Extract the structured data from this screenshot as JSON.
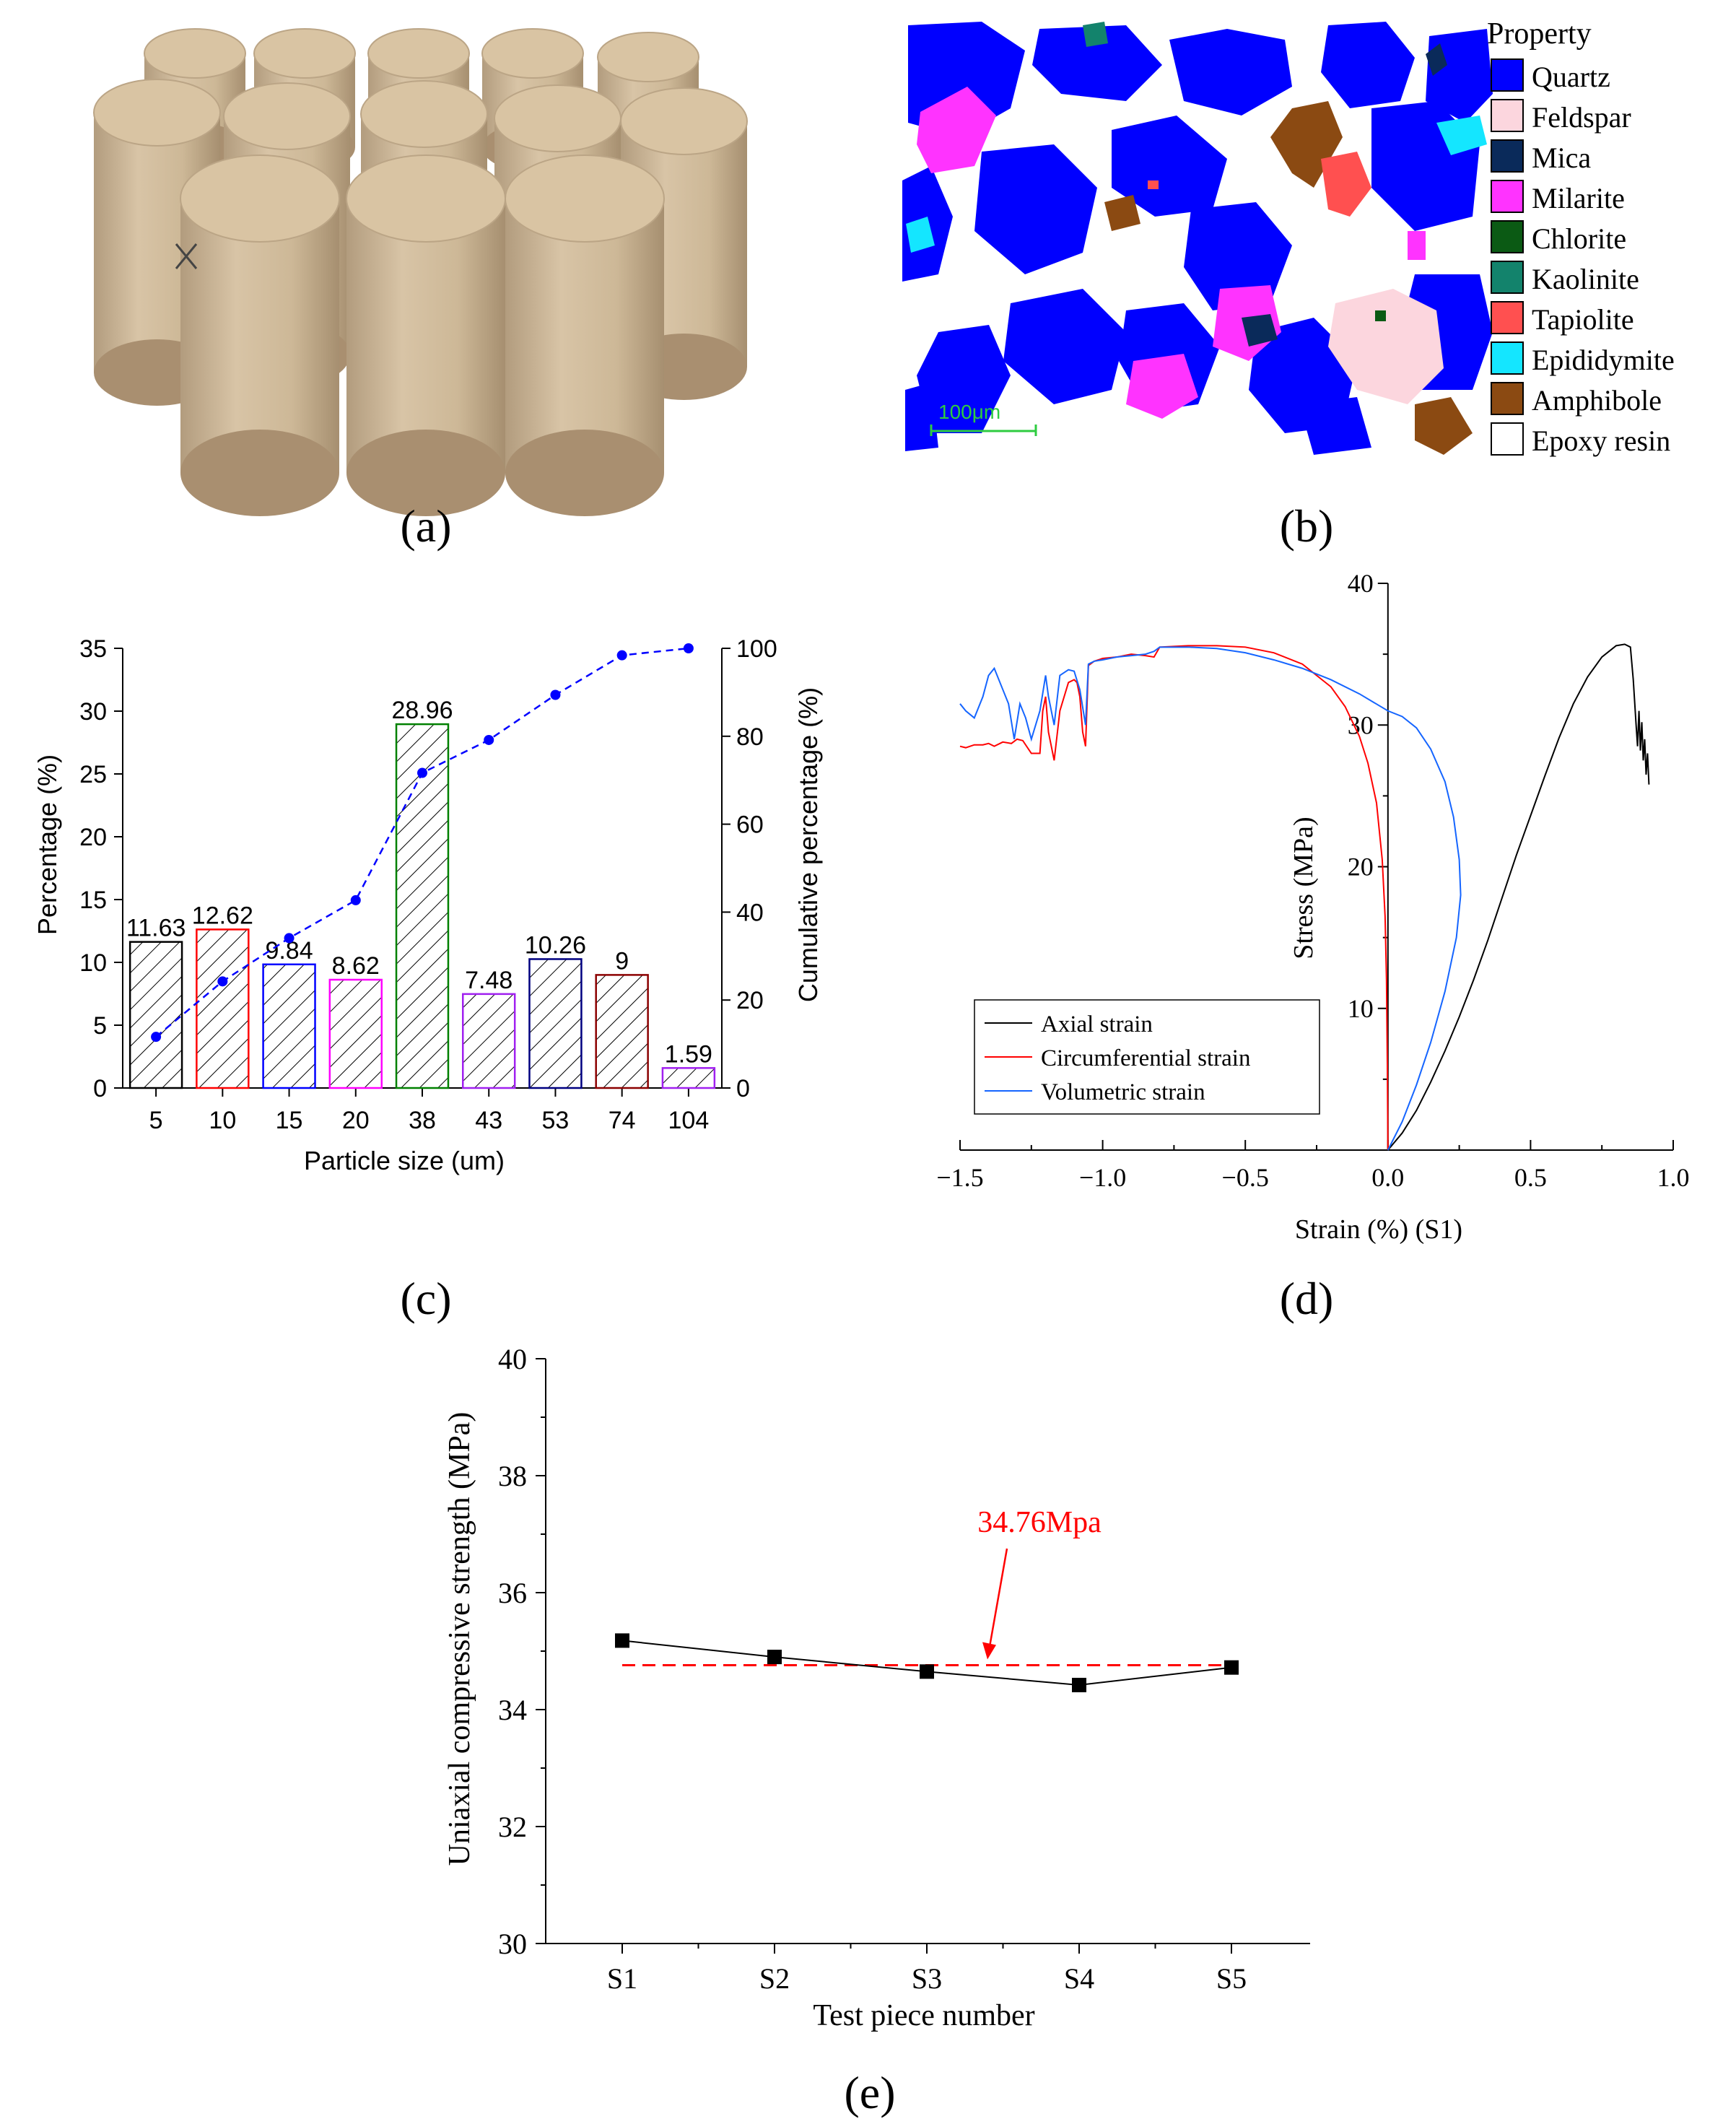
{
  "panel_labels": [
    "(a)",
    "(b)",
    "(c)",
    "(d)",
    "(e)"
  ],
  "panel_b": {
    "legend_title": "Property",
    "scale_label": "100μm",
    "legend": [
      {
        "name": "Quartz",
        "color": "#0000ff"
      },
      {
        "name": "Feldspar",
        "color": "#fcd6de"
      },
      {
        "name": "Mica",
        "color": "#0a2a5a"
      },
      {
        "name": "Milarite",
        "color": "#ff33ff"
      },
      {
        "name": "Chlorite",
        "color": "#0b5a14"
      },
      {
        "name": "Kaolinite",
        "color": "#13836c"
      },
      {
        "name": "Tapiolite",
        "color": "#ff5050"
      },
      {
        "name": "Epididymite",
        "color": "#14e6ff"
      },
      {
        "name": "Amphibole",
        "color": "#8b4a12"
      },
      {
        "name": "Epoxy resin",
        "color": "#ffffff"
      }
    ]
  },
  "chart_data": [
    {
      "id": "c",
      "type": "bar",
      "categories": [
        "5",
        "10",
        "15",
        "20",
        "38",
        "43",
        "53",
        "74",
        "104"
      ],
      "series": [
        {
          "name": "Percentage",
          "values": [
            11.63,
            12.62,
            9.84,
            8.62,
            28.96,
            7.48,
            10.26,
            9,
            1.59
          ],
          "labels": [
            "11.63",
            "12.62",
            "9.84",
            "8.62",
            "28.96",
            "7.48",
            "10.26",
            "9",
            "1.59"
          ],
          "colors": [
            "#000000",
            "#ff0000",
            "#0000ff",
            "#ff00ff",
            "#008000",
            "#a020f0",
            "#000080",
            "#8b0000",
            "#a020f0"
          ]
        },
        {
          "name": "Cumulative percentage",
          "type": "line",
          "axis": "right",
          "values": [
            11.63,
            24.25,
            34.09,
            42.71,
            71.67,
            79.15,
            89.41,
            98.41,
            100
          ],
          "color": "#0000ff"
        }
      ],
      "xlabel": "Particle size (um)",
      "ylabel": "Percentage (%)",
      "y2label": "Cumulative percentage (%)",
      "ylim": [
        0,
        35
      ],
      "y2lim": [
        0,
        100
      ],
      "yticks": [
        "0",
        "5",
        "10",
        "15",
        "20",
        "25",
        "30",
        "35"
      ],
      "y2ticks": [
        "0",
        "20",
        "40",
        "60",
        "80",
        "100"
      ]
    },
    {
      "id": "d",
      "type": "line",
      "xlabel": "Strain (%) (S1)",
      "ylabel": "Stress (MPa)",
      "xlim": [
        -1.5,
        1.0
      ],
      "ylim": [
        0,
        40
      ],
      "xticks": [
        "−1.5",
        "−1.0",
        "−0.5",
        "0.0",
        "0.5",
        "1.0"
      ],
      "yticks": [
        "10",
        "20",
        "30",
        "40"
      ],
      "legend": [
        "Axial strain",
        "Circumferential strain",
        "Volumetric strain"
      ],
      "series": [
        {
          "name": "Axial strain",
          "color": "#000000",
          "x": [
            0,
            0.05,
            0.1,
            0.15,
            0.2,
            0.25,
            0.3,
            0.35,
            0.4,
            0.45,
            0.5,
            0.55,
            0.6,
            0.65,
            0.7,
            0.75,
            0.8,
            0.83,
            0.85,
            0.86,
            0.87,
            0.875,
            0.88,
            0.885,
            0.89,
            0.895,
            0.9,
            0.905,
            0.91,
            0.915
          ],
          "y": [
            0,
            1.2,
            2.8,
            4.8,
            7.0,
            9.4,
            12.0,
            14.8,
            17.8,
            20.8,
            23.6,
            26.4,
            29.1,
            31.5,
            33.4,
            34.8,
            35.6,
            35.7,
            35.5,
            33.2,
            30.0,
            28.5,
            31.0,
            28.2,
            30.2,
            27.5,
            29.0,
            26.5,
            28.0,
            25.8
          ]
        },
        {
          "name": "Circumferential strain",
          "color": "#ff0000",
          "x": [
            0,
            -0.002,
            -0.005,
            -0.01,
            -0.02,
            -0.04,
            -0.07,
            -0.1,
            -0.15,
            -0.2,
            -0.3,
            -0.4,
            -0.5,
            -0.6,
            -0.7,
            -0.8,
            -0.82,
            -0.85,
            -0.9,
            -0.95,
            -1.0,
            -1.03,
            -1.05,
            -1.06,
            -1.07,
            -1.08,
            -1.09,
            -1.1,
            -1.12,
            -1.15,
            -1.17,
            -1.19,
            -1.2,
            -1.21,
            -1.22,
            -1.25,
            -1.28,
            -1.3,
            -1.32,
            -1.35,
            -1.38,
            -1.4,
            -1.42,
            -1.45,
            -1.48,
            -1.5
          ],
          "y": [
            0,
            6,
            12,
            16.5,
            20.5,
            24.5,
            27.3,
            29.2,
            31.3,
            32.7,
            34.3,
            35.1,
            35.5,
            35.6,
            35.6,
            35.5,
            34.8,
            34.9,
            35.0,
            34.8,
            34.7,
            34.5,
            34.2,
            28.5,
            29.5,
            32.0,
            33.0,
            33.2,
            33.0,
            31.0,
            27.5,
            29.5,
            32.0,
            31.0,
            28.0,
            28.0,
            28.9,
            29.0,
            28.7,
            28.8,
            28.5,
            28.7,
            28.6,
            28.6,
            28.4,
            28.5
          ]
        },
        {
          "name": "Volumetric strain",
          "color": "#1565ff",
          "x": [
            0,
            0.05,
            0.1,
            0.15,
            0.2,
            0.24,
            0.255,
            0.25,
            0.23,
            0.2,
            0.15,
            0.1,
            0.05,
            0,
            -0.05,
            -0.1,
            -0.2,
            -0.3,
            -0.4,
            -0.5,
            -0.6,
            -0.7,
            -0.8,
            -0.82,
            -0.85,
            -0.9,
            -0.95,
            -1.0,
            -1.03,
            -1.05,
            -1.06,
            -1.08,
            -1.1,
            -1.12,
            -1.15,
            -1.17,
            -1.19,
            -1.2,
            -1.22,
            -1.25,
            -1.27,
            -1.29,
            -1.31,
            -1.33,
            -1.35,
            -1.38,
            -1.4,
            -1.42,
            -1.45,
            -1.48,
            -1.5
          ],
          "y": [
            0,
            2.0,
            4.6,
            7.6,
            11.2,
            15.0,
            18.0,
            20.5,
            23.5,
            26.0,
            28.3,
            29.8,
            30.6,
            31.0,
            31.6,
            32.2,
            33.2,
            34.0,
            34.6,
            35.1,
            35.4,
            35.5,
            35.5,
            35.2,
            35.0,
            34.9,
            34.8,
            34.6,
            34.5,
            34.3,
            30.0,
            32.5,
            33.8,
            33.9,
            33.5,
            30.0,
            32.0,
            33.5,
            31.0,
            29.0,
            30.5,
            31.5,
            29.0,
            31.5,
            32.5,
            34.0,
            33.5,
            32.0,
            30.5,
            31.0,
            31.5
          ]
        }
      ]
    },
    {
      "id": "e",
      "type": "line",
      "categories": [
        "S1",
        "S2",
        "S3",
        "S4",
        "S5"
      ],
      "values": [
        35.18,
        34.9,
        34.65,
        34.42,
        34.72
      ],
      "mean": 34.76,
      "annotation": "34.76Mpa",
      "xlabel": "Test piece number",
      "ylabel": "Uniaxial compressive strength (MPa)",
      "ylim": [
        30,
        40
      ],
      "yticks": [
        "30",
        "32",
        "34",
        "36",
        "38",
        "40"
      ]
    }
  ]
}
